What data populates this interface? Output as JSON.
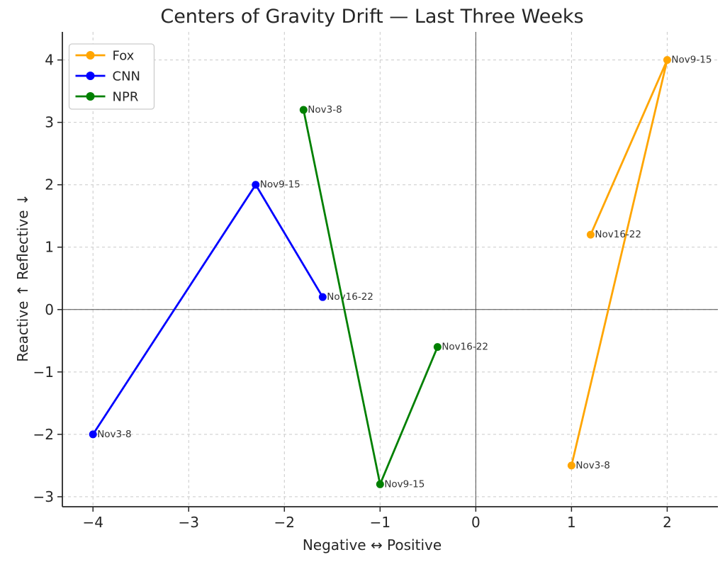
{
  "chart_data": {
    "type": "line",
    "title": "Centers of Gravity Drift — Last Three Weeks",
    "xlabel": "Negative ↔ Positive",
    "ylabel": "Reactive ↑  Reflective ↓",
    "xlim": [
      -4.32,
      2.53
    ],
    "ylim": [
      -3.16,
      4.45
    ],
    "grid": true,
    "grid_style": "dashed",
    "zero_lines": true,
    "legend_position": "upper left",
    "xticks": [
      {
        "value": -4,
        "label": "−4"
      },
      {
        "value": -3,
        "label": "−3"
      },
      {
        "value": -2,
        "label": "−2"
      },
      {
        "value": -1,
        "label": "−1"
      },
      {
        "value": 0,
        "label": "0"
      },
      {
        "value": 1,
        "label": "1"
      },
      {
        "value": 2,
        "label": "2"
      }
    ],
    "yticks": [
      {
        "value": -3,
        "label": "−3"
      },
      {
        "value": -2,
        "label": "−2"
      },
      {
        "value": -1,
        "label": "−1"
      },
      {
        "value": 0,
        "label": "0"
      },
      {
        "value": 1,
        "label": "1"
      },
      {
        "value": 2,
        "label": "2"
      },
      {
        "value": 3,
        "label": "3"
      },
      {
        "value": 4,
        "label": "4"
      }
    ],
    "series": [
      {
        "name": "Fox",
        "color": "#FFA500",
        "points": [
          {
            "x": 1,
            "y": -2.5,
            "label": "Nov3-8"
          },
          {
            "x": 2,
            "y": 4,
            "label": "Nov9-15"
          },
          {
            "x": 1.2,
            "y": 1.2,
            "label": "Nov16-22"
          }
        ]
      },
      {
        "name": "CNN",
        "color": "#0000FF",
        "points": [
          {
            "x": -4,
            "y": -2,
            "label": "Nov3-8"
          },
          {
            "x": -2.3,
            "y": 2,
            "label": "Nov9-15"
          },
          {
            "x": -1.6,
            "y": 0.2,
            "label": "Nov16-22"
          }
        ]
      },
      {
        "name": "NPR",
        "color": "#008000",
        "points": [
          {
            "x": -1.8,
            "y": 3.2,
            "label": "Nov3-8"
          },
          {
            "x": -1,
            "y": -2.8,
            "label": "Nov9-15"
          },
          {
            "x": -0.4,
            "y": -0.6,
            "label": "Nov16-22"
          }
        ]
      }
    ],
    "colors": {
      "grid": "#c9c9c9",
      "axis": "#262626",
      "zero_line": "#4d4d4d",
      "annotation": "#333333",
      "legend_border": "#cccccc",
      "background": "#ffffff"
    }
  }
}
